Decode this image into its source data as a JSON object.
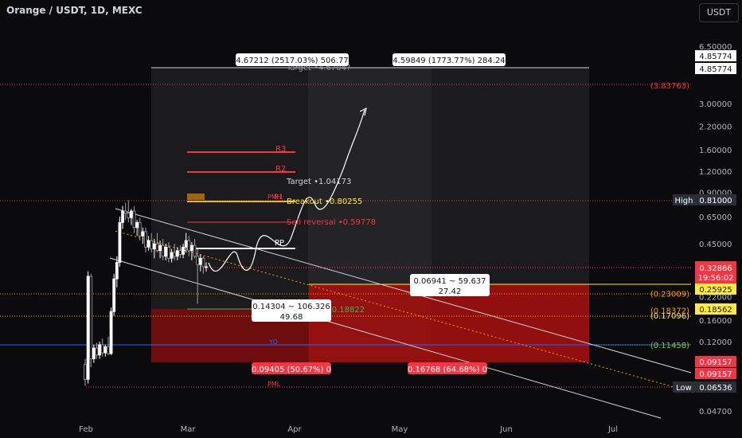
{
  "header": {
    "title": "Orange / USDT, 1D, MEXC",
    "currency_button": "USDT"
  },
  "chart_data": {
    "type": "candlestick",
    "title": "Orange / USDT, 1D, MEXC",
    "x_tick_labels": [
      "Feb",
      "Mar",
      "Apr",
      "May",
      "Jun",
      "Jul"
    ],
    "y_scale": "log",
    "y_tick_labels": [
      "6.50000",
      "3.00000",
      "2.20000",
      "1.60000",
      "1.20000",
      "0.90000",
      "0.65000",
      "0.45000",
      "0.22000",
      "0.16000",
      "0.12000",
      "0.04700"
    ],
    "current_price": "0.32866",
    "countdown": "19:56:02",
    "price_tags": [
      {
        "label": "",
        "value": "4.85774",
        "style": "light"
      },
      {
        "label": "",
        "value": "4.85774",
        "style": "light"
      },
      {
        "label": "High",
        "value": "0.81000",
        "style": "high"
      },
      {
        "label": "",
        "value": "0.25925",
        "style": "yellow"
      },
      {
        "label": "",
        "value": "0.18562",
        "style": "yellow"
      },
      {
        "label": "",
        "value": "0.09157",
        "style": "red"
      },
      {
        "label": "",
        "value": "0.09157",
        "style": "red"
      },
      {
        "label": "Low",
        "value": "0.06536",
        "style": "low"
      }
    ],
    "axis_notes": [
      {
        "text": "(3.83763)",
        "price": 3.83763,
        "color": "#f23645"
      },
      {
        "text": "(0.23009)",
        "price": 0.23009,
        "color": "#ff9800"
      },
      {
        "text": "(0.18372)",
        "price": 0.18372,
        "color": "#ff9800"
      },
      {
        "text": "(0.17096)",
        "price": 0.17096,
        "color": "#ffeb3b"
      },
      {
        "text": "(0.11458)",
        "price": 0.11458,
        "color": "#8bc34a"
      }
    ],
    "pivot_labels": [
      "R3",
      "R2",
      "R1",
      "PP",
      "YO",
      "PMH",
      "PML"
    ],
    "annotations": {
      "target_top": "Target •4.6704?",
      "target": "Target •1.04173",
      "breakout": "Breakout •0.80255",
      "sell_reversal": "Sell reversal •0.59778",
      "buy_reversal": "Buy reversal •0.18822"
    },
    "measure_boxes": [
      "4.67212 (2517.03%) 506.77",
      "4.59849 (1773.77%) 284.24",
      "0.14304 ~ 106.326",
      "49.68",
      "0.06941 ~ 59.637",
      "27.42",
      "0.09405 (50.67%) 0",
      "0.16768 (64.68%) 0"
    ],
    "candles": [
      {
        "o": 0.088,
        "h": 0.095,
        "l": 0.066,
        "c": 0.072
      },
      {
        "o": 0.072,
        "h": 0.31,
        "l": 0.068,
        "c": 0.29
      },
      {
        "o": 0.29,
        "h": 0.3,
        "l": 0.085,
        "c": 0.095
      },
      {
        "o": 0.095,
        "h": 0.115,
        "l": 0.09,
        "c": 0.11
      },
      {
        "o": 0.11,
        "h": 0.118,
        "l": 0.095,
        "c": 0.1
      },
      {
        "o": 0.1,
        "h": 0.12,
        "l": 0.095,
        "c": 0.115
      },
      {
        "o": 0.115,
        "h": 0.125,
        "l": 0.098,
        "c": 0.103
      },
      {
        "o": 0.103,
        "h": 0.115,
        "l": 0.098,
        "c": 0.112
      },
      {
        "o": 0.112,
        "h": 0.128,
        "l": 0.1,
        "c": 0.102
      },
      {
        "o": 0.102,
        "h": 0.19,
        "l": 0.1,
        "c": 0.18
      },
      {
        "o": 0.18,
        "h": 0.3,
        "l": 0.17,
        "c": 0.28
      },
      {
        "o": 0.28,
        "h": 0.38,
        "l": 0.25,
        "c": 0.35
      },
      {
        "o": 0.35,
        "h": 0.65,
        "l": 0.33,
        "c": 0.6
      },
      {
        "o": 0.6,
        "h": 0.75,
        "l": 0.55,
        "c": 0.7
      },
      {
        "o": 0.7,
        "h": 0.78,
        "l": 0.62,
        "c": 0.68
      },
      {
        "o": 0.68,
        "h": 0.81,
        "l": 0.6,
        "c": 0.64
      },
      {
        "o": 0.64,
        "h": 0.72,
        "l": 0.58,
        "c": 0.7
      },
      {
        "o": 0.7,
        "h": 0.75,
        "l": 0.52,
        "c": 0.56
      },
      {
        "o": 0.56,
        "h": 0.62,
        "l": 0.5,
        "c": 0.6
      },
      {
        "o": 0.6,
        "h": 0.64,
        "l": 0.47,
        "c": 0.5
      },
      {
        "o": 0.5,
        "h": 0.56,
        "l": 0.45,
        "c": 0.53
      },
      {
        "o": 0.53,
        "h": 0.56,
        "l": 0.4,
        "c": 0.43
      },
      {
        "o": 0.43,
        "h": 0.5,
        "l": 0.41,
        "c": 0.47
      },
      {
        "o": 0.47,
        "h": 0.52,
        "l": 0.4,
        "c": 0.42
      },
      {
        "o": 0.42,
        "h": 0.48,
        "l": 0.37,
        "c": 0.45
      },
      {
        "o": 0.45,
        "h": 0.52,
        "l": 0.4,
        "c": 0.41
      },
      {
        "o": 0.41,
        "h": 0.47,
        "l": 0.37,
        "c": 0.44
      },
      {
        "o": 0.44,
        "h": 0.48,
        "l": 0.36,
        "c": 0.38
      },
      {
        "o": 0.38,
        "h": 0.45,
        "l": 0.36,
        "c": 0.43
      },
      {
        "o": 0.43,
        "h": 0.46,
        "l": 0.35,
        "c": 0.37
      },
      {
        "o": 0.37,
        "h": 0.42,
        "l": 0.35,
        "c": 0.4
      },
      {
        "o": 0.4,
        "h": 0.45,
        "l": 0.36,
        "c": 0.38
      },
      {
        "o": 0.38,
        "h": 0.43,
        "l": 0.36,
        "c": 0.41
      },
      {
        "o": 0.41,
        "h": 0.44,
        "l": 0.37,
        "c": 0.39
      },
      {
        "o": 0.39,
        "h": 0.45,
        "l": 0.37,
        "c": 0.43
      },
      {
        "o": 0.43,
        "h": 0.52,
        "l": 0.4,
        "c": 0.47
      },
      {
        "o": 0.47,
        "h": 0.5,
        "l": 0.38,
        "c": 0.41
      },
      {
        "o": 0.41,
        "h": 0.46,
        "l": 0.36,
        "c": 0.44
      },
      {
        "o": 0.44,
        "h": 0.48,
        "l": 0.37,
        "c": 0.38
      },
      {
        "o": 0.38,
        "h": 0.42,
        "l": 0.2,
        "c": 0.34
      },
      {
        "o": 0.34,
        "h": 0.39,
        "l": 0.31,
        "c": 0.37
      },
      {
        "o": 0.37,
        "h": 0.38,
        "l": 0.3,
        "c": 0.33
      },
      {
        "o": 0.33,
        "h": 0.35,
        "l": 0.31,
        "c": 0.33
      }
    ]
  }
}
